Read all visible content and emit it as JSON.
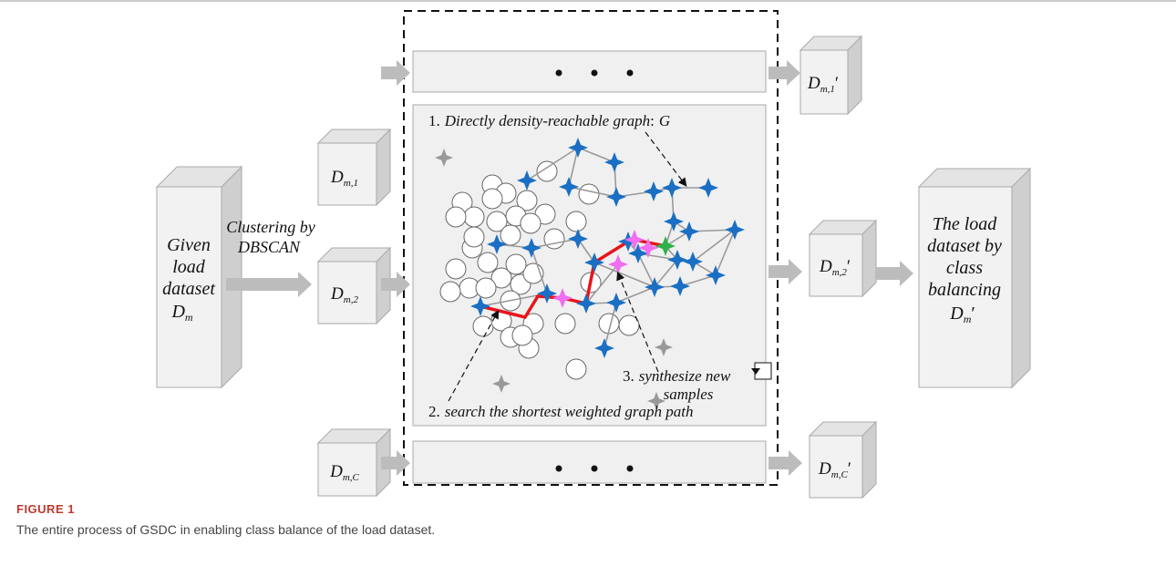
{
  "diagram": {
    "inputs": [
      {
        "base": "D",
        "sub": "m,1"
      },
      {
        "base": "D",
        "sub": "m,2"
      },
      {
        "base": "D",
        "sub": "m,C"
      }
    ],
    "outputs": [
      {
        "base": "D",
        "sub": "m,1",
        "suffix": "′"
      },
      {
        "base": "D",
        "sub": "m,2",
        "suffix": "′"
      },
      {
        "base": "D",
        "sub": "m,C",
        "suffix": "′"
      }
    ],
    "given": {
      "lines": [
        "Given",
        "load",
        "dataset"
      ],
      "base": "D",
      "sub": "m"
    },
    "clustering": [
      "Clustering by",
      "DBSCAN"
    ],
    "result": {
      "lines": [
        "The load",
        "dataset by",
        "class",
        "balancing"
      ],
      "base": "D",
      "sub": "m",
      "suffix": "′"
    },
    "step1": {
      "number": "1.",
      "text": "Directly density-reachable graph",
      "colon": ":",
      "var": "G"
    },
    "step2": {
      "number": "2.",
      "text": "search the shortest weighted graph path"
    },
    "step3": {
      "number": "3.",
      "lines": [
        "synthesize new",
        "samples"
      ]
    }
  },
  "figure": {
    "label": "FIGURE 1",
    "caption": "The entire process of GSDC in enabling class balance of the load dataset."
  }
}
